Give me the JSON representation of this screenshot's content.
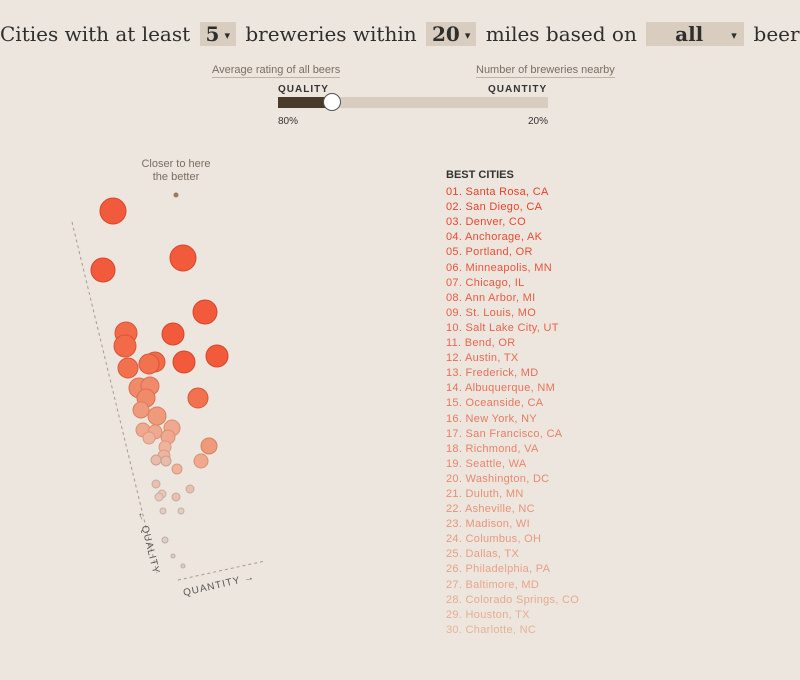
{
  "header": {
    "prefix": "Cities with at least",
    "breweries_select": "5",
    "middle": "breweries within",
    "miles_select": "20",
    "miles_text": "miles based on",
    "beers_select": "all",
    "suffix": "beers."
  },
  "slider": {
    "left_note": "Average rating of all beers",
    "right_note": "Number of breweries nearby",
    "left_label": "QUALITY",
    "right_label": "QUANTITY",
    "left_value": "80%",
    "right_value": "20%"
  },
  "plot": {
    "annotation_lines": [
      "Closer to here",
      "the better"
    ],
    "y_axis": "← QUALITY",
    "x_axis": "QUANTITY →"
  },
  "list": {
    "title": "BEST CITIES",
    "items": [
      "01. Santa Rosa, CA",
      "02. San Diego, CA",
      "03. Denver, CO",
      "04. Anchorage, AK",
      "05. Portland, OR",
      "06. Minneapolis, MN",
      "07. Chicago, IL",
      "08. Ann Arbor, MI",
      "09. St. Louis, MO",
      "10. Salt Lake City, UT",
      "11. Bend, OR",
      "12. Austin, TX",
      "13. Frederick, MD",
      "14. Albuquerque, NM",
      "15. Oceanside, CA",
      "16. New York, NY",
      "17. San Francisco, CA",
      "18. Richmond, VA",
      "19. Seattle, WA",
      "20. Washington, DC",
      "21. Duluth, MN",
      "22. Asheville, NC",
      "23. Madison, WI",
      "24. Columbus, OH",
      "25. Dallas, TX",
      "26. Philadelphia, PA",
      "27. Baltimore, MD",
      "28. Colorado Springs, CO",
      "29. Houston, TX",
      "30. Charlotte, NC"
    ]
  }
}
